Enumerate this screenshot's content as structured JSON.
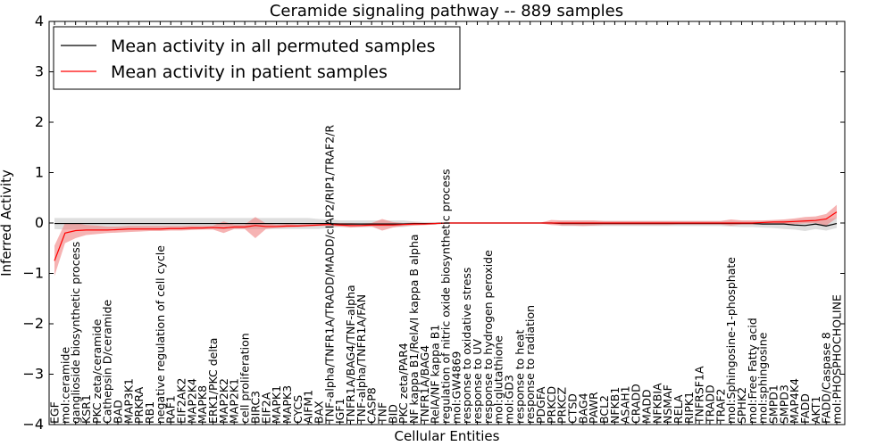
{
  "chart_data": {
    "type": "line",
    "title": "Ceramide signaling pathway -- 889 samples",
    "xlabel": "Cellular Entities",
    "ylabel": "Inferred Activity",
    "ylim": [
      -4,
      4
    ],
    "yticks": [
      "4",
      "3",
      "2",
      "1",
      "0",
      "−1",
      "−2",
      "−3",
      "−4"
    ],
    "legend": {
      "placement": "top-left",
      "entries": [
        "Mean activity in all permuted samples",
        "Mean activity in patient samples"
      ]
    },
    "colors": {
      "permuted": "#000000",
      "patient": "#ff0000",
      "permuted_band": "#c8c8c8",
      "patient_band": "#f08080"
    },
    "categories": [
      "EGF",
      "mol:ceramide",
      "ganglioside biosynthetic process",
      "KSR1",
      "PKC zeta/ceramide",
      "Cathepsin D/ceramide",
      "BAD",
      "MAP3K1",
      "PRKRA",
      "RB1",
      "negative regulation of cell cycle",
      "RAF1",
      "EIF2AK2",
      "MAP2K4",
      "MAPK8",
      "ERK1/PKC delta",
      "MAP2K2",
      "MAP2K1",
      "cell proliferation",
      "BIRC3",
      "EIF2A",
      "MAPK1",
      "MAPK3",
      "CYCS",
      "AIFM1",
      "BAX",
      "TNF-alpha/TNFR1A/TRADD/MADD/cIAP2/RIP1/TRAF2/R",
      "IGF1",
      "TNFR1A/BAG4/TNF-alpha",
      "TNF-alpha/TNFR1A/FAN",
      "CASP8",
      "TNF",
      "BID",
      "PKC zeta/PAR4",
      "NF kappa B1/RelA/I kappa B alpha",
      "TNFR1A/BAG4",
      "RelA/NF kappa B1",
      "regulation of nitric oxide biosynthetic process",
      "mol:GW4869",
      "response to oxidative stress",
      "response to UV",
      "response to hydrogen peroxide",
      "mol:glutathione",
      "mol:GD3",
      "response to heat",
      "response to radiation",
      "PDGFA",
      "PRKCD",
      "PRKCZ",
      "CTSD",
      "BAG4",
      "PAWR",
      "BCL2",
      "NFKB1",
      "ASAH1",
      "CRADD",
      "MADD",
      "NFKBIA",
      "NSMAF",
      "RELA",
      "RIPK1",
      "TNFRSF1A",
      "TRADD",
      "TRAF2",
      "mol:Sphingosine-1-phosphate",
      "SPHK2",
      "mol:Free Fatty acid",
      "mol:sphingosine",
      "SMPD1",
      "SMPD3",
      "MAP4K4",
      "FADD",
      "AKT1",
      "FADD/Caspase 8",
      "mol:PHOSPHOCHOLINE"
    ],
    "series": [
      {
        "name": "Mean activity in all permuted samples",
        "values": [
          -0.01,
          -0.01,
          -0.01,
          -0.01,
          -0.01,
          -0.01,
          -0.01,
          -0.01,
          -0.01,
          -0.01,
          -0.01,
          -0.01,
          -0.01,
          -0.01,
          -0.01,
          -0.01,
          -0.01,
          -0.01,
          -0.01,
          -0.01,
          -0.01,
          -0.01,
          -0.01,
          -0.01,
          -0.01,
          -0.01,
          -0.01,
          -0.02,
          -0.02,
          -0.02,
          -0.02,
          -0.02,
          -0.02,
          -0.02,
          -0.01,
          -0.01,
          -0.01,
          0.0,
          0.0,
          0.0,
          0.0,
          0.0,
          0.0,
          0.0,
          0.0,
          0.0,
          0.0,
          0.0,
          -0.01,
          -0.01,
          -0.01,
          -0.01,
          -0.01,
          -0.01,
          -0.01,
          -0.01,
          -0.01,
          -0.01,
          -0.01,
          -0.01,
          -0.01,
          -0.01,
          -0.01,
          -0.01,
          -0.01,
          -0.01,
          -0.01,
          -0.02,
          -0.02,
          -0.02,
          -0.04,
          -0.05,
          -0.02,
          -0.06,
          -0.01
        ],
        "lower": [
          -0.12,
          -0.13,
          -0.12,
          -0.12,
          -0.12,
          -0.12,
          -0.12,
          -0.12,
          -0.12,
          -0.12,
          -0.12,
          -0.12,
          -0.12,
          -0.12,
          -0.12,
          -0.12,
          -0.12,
          -0.12,
          -0.12,
          -0.12,
          -0.12,
          -0.12,
          -0.12,
          -0.12,
          -0.12,
          -0.12,
          -0.1,
          -0.08,
          -0.08,
          -0.08,
          -0.08,
          -0.08,
          -0.08,
          -0.08,
          -0.05,
          -0.04,
          -0.03,
          -0.01,
          -0.01,
          -0.01,
          -0.01,
          -0.01,
          -0.01,
          -0.01,
          -0.01,
          -0.01,
          -0.01,
          -0.01,
          -0.06,
          -0.06,
          -0.06,
          -0.06,
          -0.06,
          -0.06,
          -0.06,
          -0.06,
          -0.06,
          -0.06,
          -0.06,
          -0.06,
          -0.06,
          -0.06,
          -0.06,
          -0.06,
          -0.07,
          -0.08,
          -0.08,
          -0.09,
          -0.1,
          -0.12,
          -0.13,
          -0.16,
          -0.12,
          -0.15,
          -0.1
        ],
        "upper": [
          0.1,
          0.1,
          0.1,
          0.1,
          0.1,
          0.1,
          0.1,
          0.1,
          0.1,
          0.1,
          0.1,
          0.1,
          0.1,
          0.1,
          0.1,
          0.1,
          0.1,
          0.1,
          0.1,
          0.1,
          0.1,
          0.1,
          0.1,
          0.1,
          0.1,
          0.08,
          0.07,
          0.05,
          0.05,
          0.05,
          0.05,
          0.05,
          0.05,
          0.05,
          0.03,
          0.02,
          0.02,
          0.01,
          0.01,
          0.01,
          0.01,
          0.01,
          0.01,
          0.01,
          0.01,
          0.01,
          0.01,
          0.01,
          0.04,
          0.04,
          0.04,
          0.04,
          0.04,
          0.04,
          0.04,
          0.04,
          0.04,
          0.04,
          0.04,
          0.04,
          0.04,
          0.04,
          0.04,
          0.04,
          0.04,
          0.04,
          0.04,
          0.04,
          0.04,
          0.05,
          0.06,
          0.07,
          0.08,
          0.08,
          0.1
        ]
      },
      {
        "name": "Mean activity in patient samples",
        "values": [
          -0.75,
          -0.2,
          -0.15,
          -0.14,
          -0.14,
          -0.14,
          -0.13,
          -0.12,
          -0.12,
          -0.12,
          -0.12,
          -0.11,
          -0.11,
          -0.1,
          -0.1,
          -0.09,
          -0.1,
          -0.08,
          -0.08,
          -0.05,
          -0.07,
          -0.07,
          -0.06,
          -0.06,
          -0.05,
          -0.04,
          -0.03,
          -0.04,
          -0.05,
          -0.05,
          -0.04,
          -0.04,
          -0.04,
          -0.03,
          -0.02,
          -0.02,
          -0.01,
          0.0,
          0.0,
          0.0,
          0.0,
          0.0,
          0.0,
          0.0,
          0.0,
          0.0,
          0.0,
          0.0,
          0.0,
          0.0,
          0.0,
          0.0,
          0.0,
          0.0,
          0.0,
          0.0,
          0.0,
          0.0,
          0.0,
          0.0,
          0.0,
          0.0,
          0.0,
          0.0,
          0.0,
          0.0,
          0.0,
          0.01,
          0.02,
          0.02,
          0.03,
          0.04,
          0.05,
          0.08,
          0.22
        ],
        "lower": [
          -1.05,
          -0.4,
          -0.3,
          -0.24,
          -0.22,
          -0.2,
          -0.19,
          -0.18,
          -0.17,
          -0.16,
          -0.16,
          -0.15,
          -0.15,
          -0.14,
          -0.13,
          -0.13,
          -0.2,
          -0.12,
          -0.12,
          -0.3,
          -0.12,
          -0.1,
          -0.09,
          -0.08,
          -0.07,
          -0.06,
          -0.05,
          -0.07,
          -0.09,
          -0.08,
          -0.07,
          -0.15,
          -0.09,
          -0.06,
          -0.05,
          -0.04,
          -0.03,
          -0.01,
          -0.01,
          -0.01,
          -0.01,
          -0.01,
          -0.01,
          -0.01,
          -0.01,
          -0.01,
          -0.01,
          -0.04,
          -0.05,
          -0.05,
          -0.06,
          -0.05,
          -0.04,
          -0.04,
          -0.04,
          -0.04,
          -0.04,
          -0.04,
          -0.04,
          -0.03,
          -0.03,
          -0.03,
          -0.03,
          -0.03,
          -0.05,
          -0.03,
          -0.03,
          -0.02,
          -0.02,
          -0.02,
          -0.02,
          -0.01,
          0.0,
          -0.05,
          0.1
        ],
        "upper": [
          -0.45,
          0.0,
          0.0,
          -0.04,
          -0.05,
          -0.07,
          -0.07,
          -0.06,
          -0.06,
          -0.06,
          -0.06,
          -0.06,
          -0.06,
          -0.05,
          -0.05,
          -0.05,
          0.03,
          -0.03,
          -0.03,
          0.12,
          -0.01,
          -0.03,
          -0.02,
          -0.03,
          -0.02,
          -0.02,
          -0.01,
          0.0,
          0.0,
          -0.01,
          0.0,
          0.08,
          0.02,
          0.0,
          0.01,
          0.0,
          0.01,
          0.01,
          0.01,
          0.01,
          0.01,
          0.01,
          0.01,
          0.01,
          0.01,
          0.01,
          0.01,
          0.06,
          0.05,
          0.05,
          0.05,
          0.05,
          0.04,
          0.04,
          0.04,
          0.04,
          0.04,
          0.04,
          0.04,
          0.04,
          0.04,
          0.04,
          0.04,
          0.04,
          0.07,
          0.05,
          0.05,
          0.05,
          0.06,
          0.07,
          0.09,
          0.12,
          0.13,
          0.18,
          0.36
        ]
      }
    ]
  }
}
